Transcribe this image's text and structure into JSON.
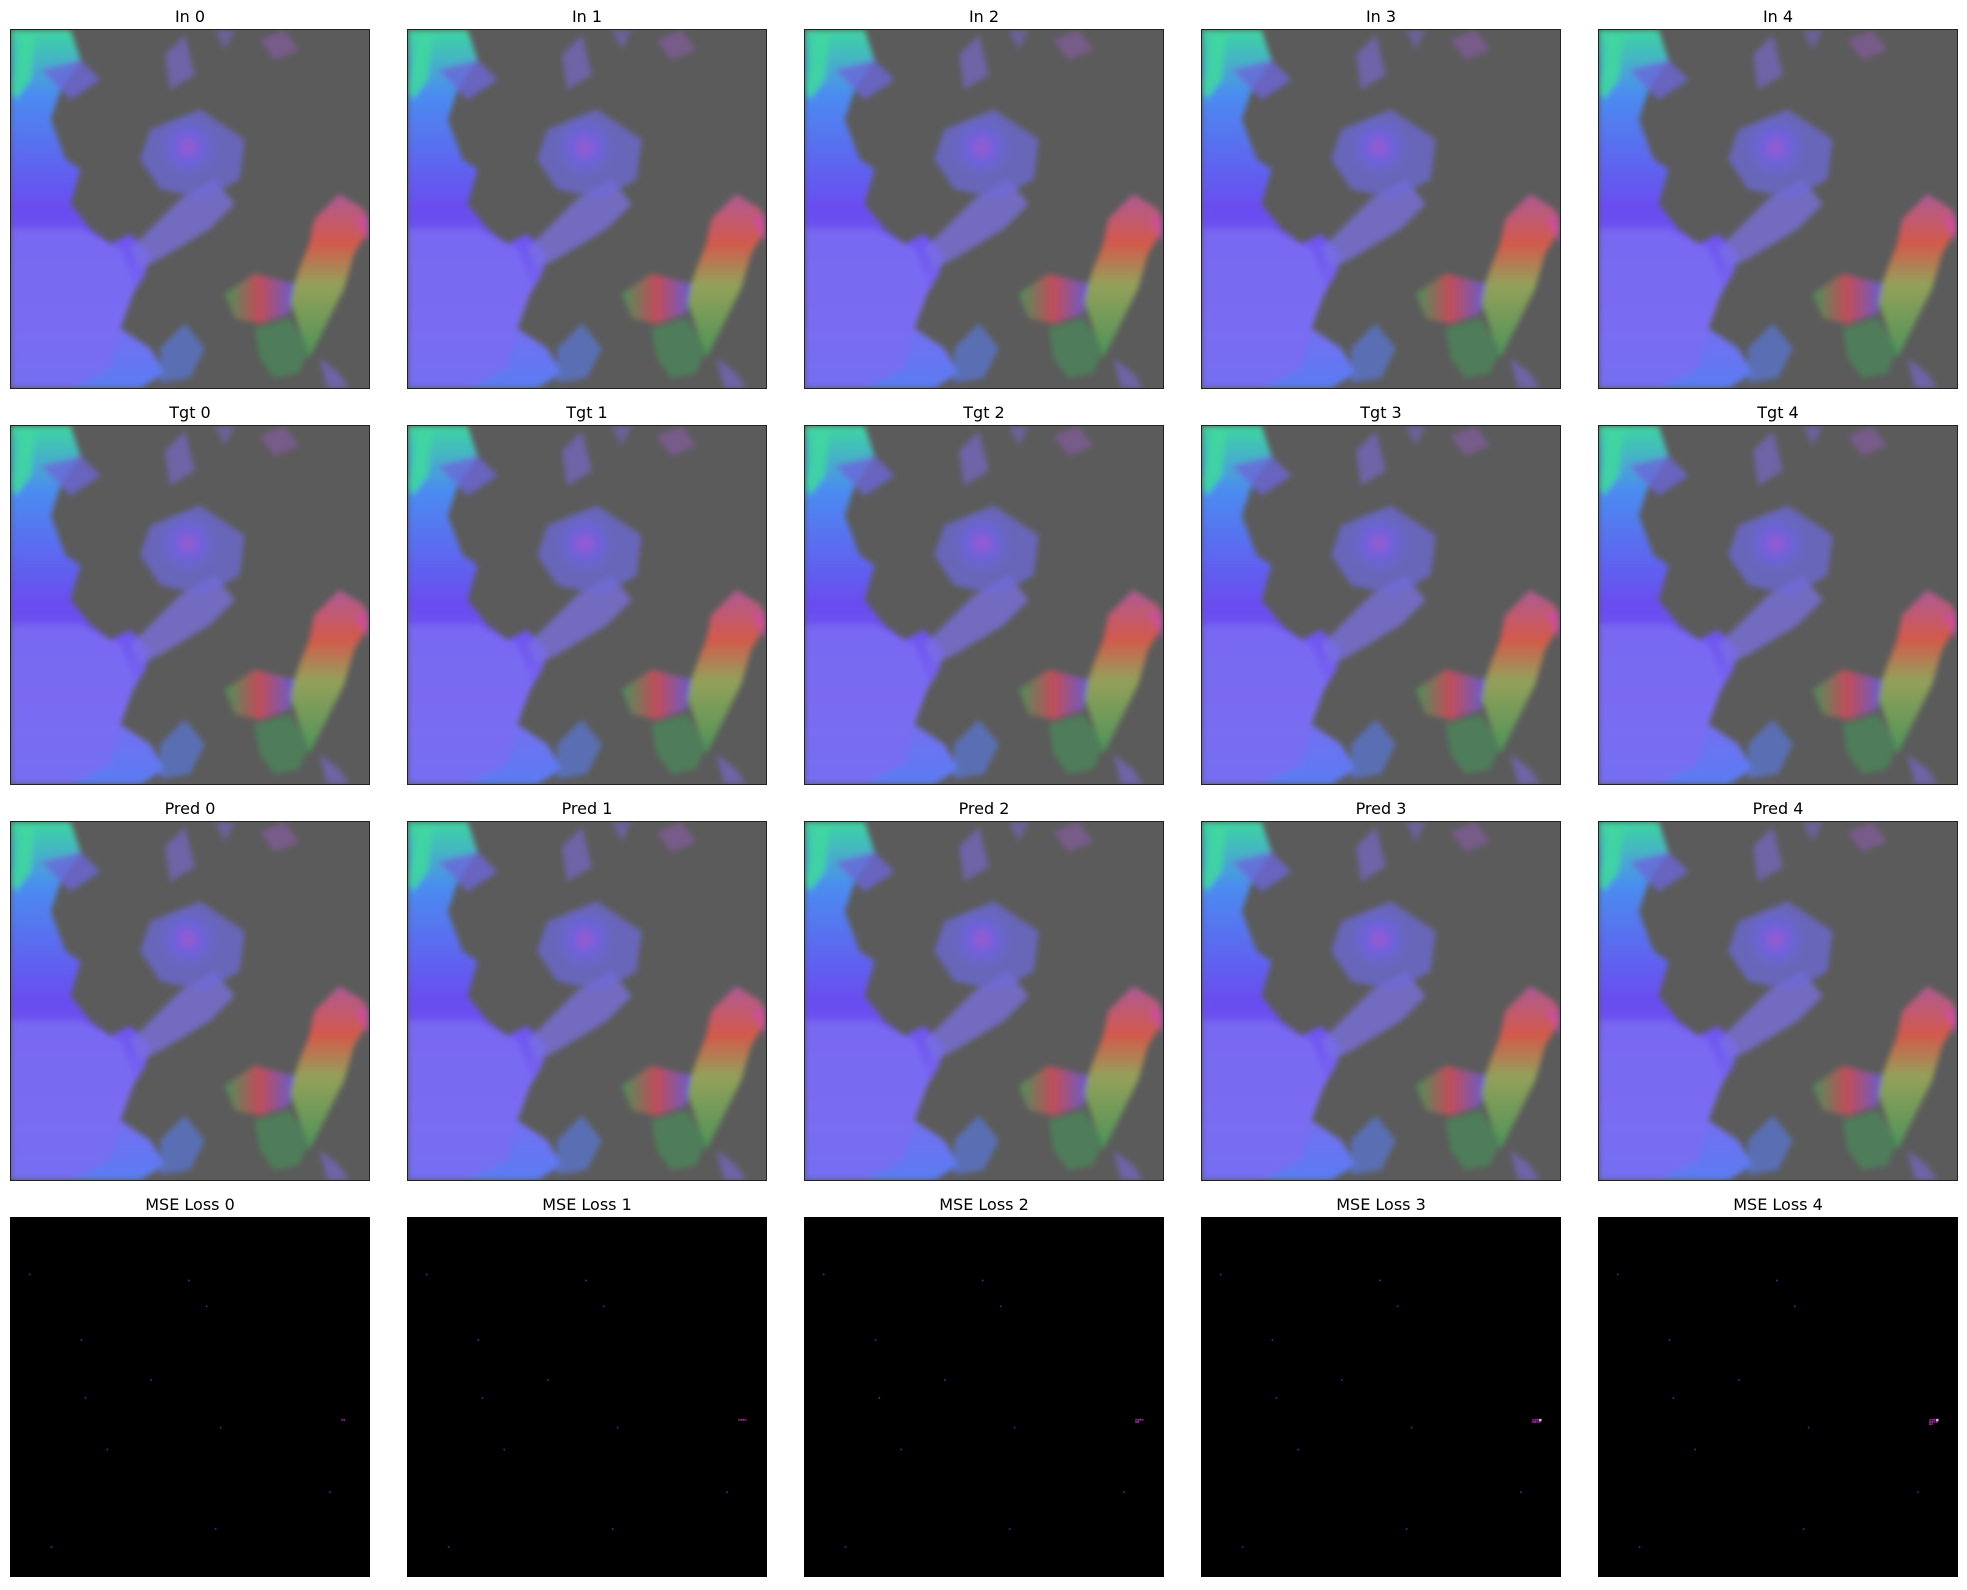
{
  "columns": [
    0,
    1,
    2,
    3,
    4
  ],
  "rows": [
    {
      "key": "in",
      "titles": [
        "In 0",
        "In 1",
        "In 2",
        "In 3",
        "In 4"
      ],
      "kind": "flow"
    },
    {
      "key": "tgt",
      "titles": [
        "Tgt 0",
        "Tgt 1",
        "Tgt 2",
        "Tgt 3",
        "Tgt 4"
      ],
      "kind": "flow"
    },
    {
      "key": "pred",
      "titles": [
        "Pred 0",
        "Pred 1",
        "Pred 2",
        "Pred 3",
        "Pred 4"
      ],
      "kind": "flow"
    },
    {
      "key": "mse",
      "titles": [
        "MSE Loss 0",
        "MSE Loss 1",
        "MSE Loss 2",
        "MSE Loss 3",
        "MSE Loss 4"
      ],
      "kind": "loss"
    }
  ],
  "colors": {
    "background": "#5b5b5b",
    "loss_background": "#000000",
    "flow_blue": "#5a6cf2",
    "flow_violet": "#7a5cf0",
    "flow_cyan": "#3fd6a0",
    "flow_red": "#d24a5a",
    "flow_green": "#4a9a5a",
    "flow_pink": "#b45b9b",
    "loss_highlight": "#e040e0"
  }
}
